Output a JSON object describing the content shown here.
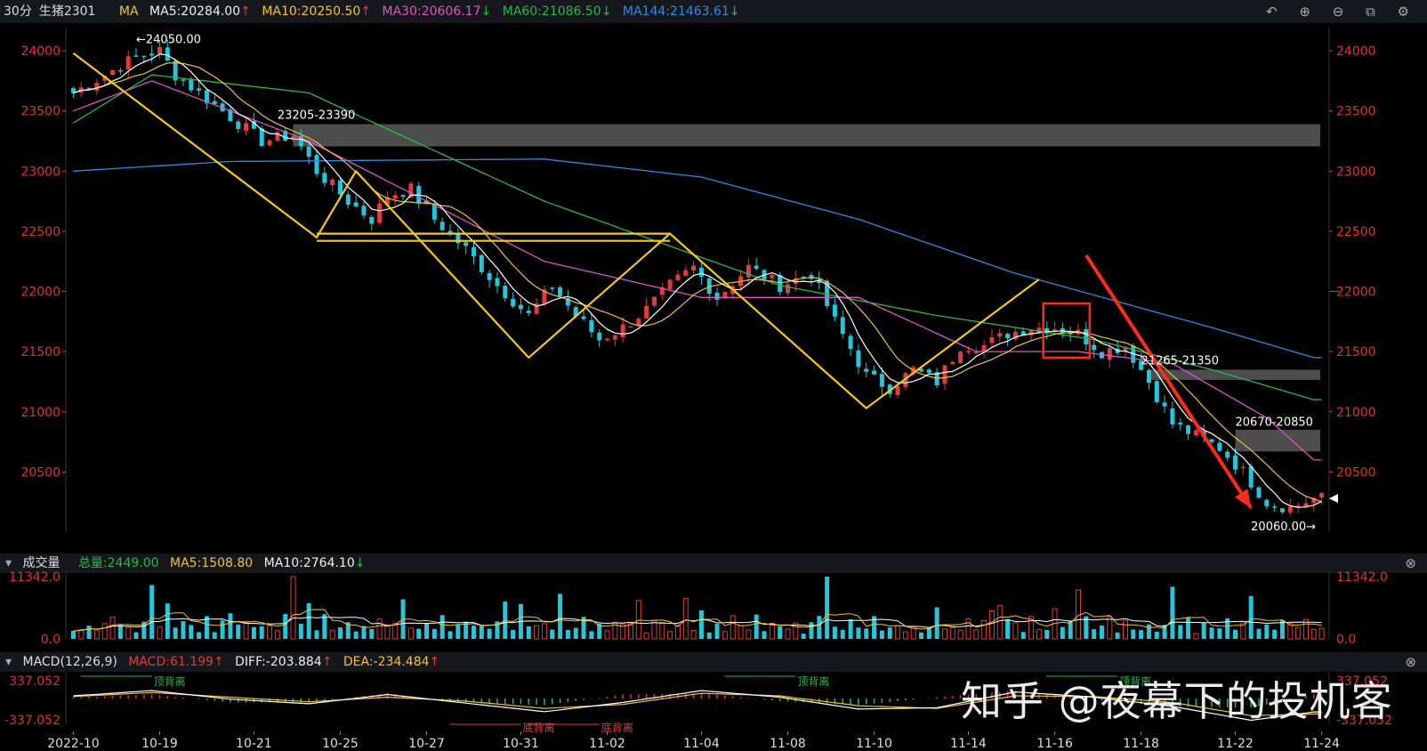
{
  "topbar": {
    "period": "30分",
    "symbol": "生猪2301",
    "ma_label": "MA",
    "ma5": "MA5:20284.00",
    "ma10": "MA10:20250.50",
    "ma30": "MA30:20606.17",
    "ma60": "MA60:21086.50",
    "ma144": "MA144:21463.61",
    "ma5_arrow": "↑",
    "ma10_arrow": "↑",
    "ma30_arrow": "↓",
    "ma60_arrow": "↓",
    "ma144_arrow": "↓",
    "tools": [
      "undo-icon",
      "zoom-in-icon",
      "zoom-out-icon",
      "crop-icon",
      "settings-icon"
    ]
  },
  "colors": {
    "up": "#e13b3b",
    "down": "#26c6da",
    "ma5": "#ffffff",
    "ma10": "#f1c232",
    "ma30": "#e052c8",
    "ma60": "#2bb74a",
    "ma144": "#2f8ae6",
    "pattern": "#f4c81c",
    "arrow": "#ff2a1a",
    "zone": "#555555"
  },
  "volume_bar": {
    "title": "成交量",
    "total": "总量:2449.00",
    "ma5": "MA5:1508.80",
    "ma10": "MA10:2764.10",
    "ma10_arrow": "↓"
  },
  "macd_bar": {
    "title": "MACD(12,26,9)",
    "macd": "MACD:61.199",
    "diff": "DIFF:-203.884",
    "dea": "DEA:-234.484",
    "macd_arrow": "↑",
    "diff_arrow": "↑",
    "dea_arrow": "↑"
  },
  "watermark": "知乎 @夜幕下的投机客",
  "chart_data": [
    {
      "type": "candlestick",
      "title": "生猪2301 30分",
      "y_ticks": [
        24000,
        23500,
        23000,
        22500,
        22000,
        21500,
        21000,
        20500
      ],
      "ylim": [
        20000,
        24200
      ],
      "x_ticks": [
        "2022-10",
        "10-19",
        "10-21",
        "10-25",
        "10-27",
        "10-31",
        "11-02",
        "11-04",
        "11-08",
        "11-10",
        "11-14",
        "11-16",
        "11-18",
        "11-22",
        "11-24"
      ],
      "close_path": [
        [
          0,
          23650
        ],
        [
          4,
          23800
        ],
        [
          8,
          23950
        ],
        [
          11,
          24000
        ],
        [
          13,
          23800
        ],
        [
          16,
          23650
        ],
        [
          20,
          23450
        ],
        [
          24,
          23250
        ],
        [
          28,
          23300
        ],
        [
          31,
          23000
        ],
        [
          35,
          22750
        ],
        [
          38,
          22600
        ],
        [
          40,
          22800
        ],
        [
          43,
          22850
        ],
        [
          46,
          22600
        ],
        [
          50,
          22350
        ],
        [
          54,
          22050
        ],
        [
          58,
          21800
        ],
        [
          61,
          22050
        ],
        [
          64,
          21800
        ],
        [
          67,
          21600
        ],
        [
          70,
          21700
        ],
        [
          73,
          21850
        ],
        [
          76,
          22050
        ],
        [
          79,
          22200
        ],
        [
          82,
          21950
        ],
        [
          86,
          22200
        ],
        [
          90,
          22050
        ],
        [
          94,
          22150
        ],
        [
          97,
          21750
        ],
        [
          101,
          21300
        ],
        [
          104,
          21200
        ],
        [
          107,
          21350
        ],
        [
          110,
          21250
        ],
        [
          113,
          21550
        ],
        [
          116,
          21550
        ],
        [
          119,
          21650
        ],
        [
          122,
          21700
        ],
        [
          125,
          21700
        ],
        [
          128,
          21650
        ],
        [
          131,
          21500
        ],
        [
          134,
          21550
        ],
        [
          137,
          21250
        ],
        [
          140,
          20900
        ],
        [
          143,
          20800
        ],
        [
          146,
          20700
        ],
        [
          149,
          20500
        ],
        [
          152,
          20250
        ],
        [
          155,
          20200
        ],
        [
          158,
          20280
        ]
      ],
      "ma144_path": [
        [
          0,
          23000
        ],
        [
          20,
          23080
        ],
        [
          60,
          23100
        ],
        [
          80,
          22950
        ],
        [
          100,
          22600
        ],
        [
          120,
          22150
        ],
        [
          145,
          21700
        ],
        [
          158,
          21450
        ]
      ],
      "ma60_path": [
        [
          0,
          23400
        ],
        [
          10,
          23800
        ],
        [
          30,
          23650
        ],
        [
          60,
          22750
        ],
        [
          90,
          22050
        ],
        [
          110,
          21800
        ],
        [
          130,
          21600
        ],
        [
          145,
          21350
        ],
        [
          158,
          21100
        ]
      ],
      "ma30_path": [
        [
          0,
          23500
        ],
        [
          10,
          23750
        ],
        [
          30,
          23250
        ],
        [
          45,
          22750
        ],
        [
          60,
          22250
        ],
        [
          80,
          21950
        ],
        [
          100,
          21950
        ],
        [
          115,
          21500
        ],
        [
          128,
          21500
        ],
        [
          140,
          21400
        ],
        [
          152,
          20950
        ],
        [
          158,
          20600
        ]
      ],
      "annotations": [
        {
          "text": "←24050.00",
          "x": 8,
          "y": 24050
        },
        {
          "text": "23205-23390",
          "x": 26,
          "y": 23420
        },
        {
          "text": "21265-21350",
          "x": 136,
          "y": 21380
        },
        {
          "text": "20670-20850",
          "x": 148,
          "y": 20870
        },
        {
          "text": "20060.00→",
          "x": 150,
          "y": 20000
        }
      ],
      "zones": [
        {
          "label": "23205-23390",
          "low": 23205,
          "high": 23390,
          "from": 28,
          "to": 158
        },
        {
          "label": "21265-21350",
          "low": 21265,
          "high": 21350,
          "from": 137,
          "to": 158
        },
        {
          "label": "20670-20850",
          "low": 20670,
          "high": 20850,
          "from": 148,
          "to": 158
        }
      ],
      "pattern_lines": [
        [
          [
            0,
            23980
          ],
          [
            31,
            22450
          ],
          [
            36,
            23000
          ],
          [
            58,
            21450
          ],
          [
            76,
            22480
          ],
          [
            101,
            21030
          ],
          [
            123,
            22100
          ]
        ],
        [
          [
            31,
            22480
          ],
          [
            76,
            22480
          ]
        ],
        [
          [
            31,
            22420
          ],
          [
            76,
            22420
          ]
        ]
      ],
      "highlight_box": {
        "from": 124,
        "to": 129,
        "low": 21450,
        "high": 21900
      },
      "arrow": {
        "from": [
          129,
          22300
        ],
        "to": [
          150,
          20200
        ]
      }
    },
    {
      "type": "bar",
      "title": "成交量",
      "y_ticks": [
        11342.0,
        0.0
      ],
      "ylim": [
        0,
        11342.0
      ],
      "values_pattern": [
        2200,
        1800,
        3500,
        1500,
        2500,
        4200,
        1900,
        2800,
        1600,
        3100,
        2000,
        2400,
        5200,
        1700,
        2600
      ],
      "spikes": [
        [
          10,
          9800
        ],
        [
          28,
          11342
        ],
        [
          30,
          6500
        ],
        [
          42,
          7200
        ],
        [
          55,
          6800
        ],
        [
          62,
          8200
        ],
        [
          78,
          7400
        ],
        [
          96,
          11342
        ],
        [
          118,
          6100
        ],
        [
          128,
          8900
        ],
        [
          140,
          9500
        ],
        [
          150,
          7800
        ]
      ]
    },
    {
      "type": "line",
      "title": "MACD(12,26,9)",
      "y_ticks": [
        337.052,
        -337.052
      ],
      "ylim": [
        -337.052,
        337.052
      ],
      "diff_path": [
        [
          0,
          40
        ],
        [
          10,
          120
        ],
        [
          20,
          -10
        ],
        [
          30,
          -80
        ],
        [
          40,
          60
        ],
        [
          50,
          -70
        ],
        [
          60,
          -200
        ],
        [
          70,
          -60
        ],
        [
          80,
          120
        ],
        [
          90,
          20
        ],
        [
          100,
          -160
        ],
        [
          110,
          -140
        ],
        [
          120,
          100
        ],
        [
          130,
          20
        ],
        [
          140,
          -120
        ],
        [
          150,
          -330
        ],
        [
          158,
          -204
        ]
      ],
      "dea_path": [
        [
          0,
          30
        ],
        [
          10,
          90
        ],
        [
          20,
          20
        ],
        [
          30,
          -50
        ],
        [
          40,
          20
        ],
        [
          50,
          -40
        ],
        [
          60,
          -150
        ],
        [
          70,
          -90
        ],
        [
          80,
          80
        ],
        [
          90,
          40
        ],
        [
          100,
          -110
        ],
        [
          110,
          -150
        ],
        [
          120,
          40
        ],
        [
          130,
          30
        ],
        [
          140,
          -60
        ],
        [
          150,
          -260
        ],
        [
          158,
          -234
        ]
      ],
      "divergence_labels": [
        {
          "text": "顶背离",
          "x": 10,
          "kind": "top"
        },
        {
          "text": "底背离",
          "x": 57,
          "kind": "bottom"
        },
        {
          "text": "底背离",
          "x": 67,
          "kind": "bottom"
        },
        {
          "text": "顶背离",
          "x": 92,
          "kind": "top"
        },
        {
          "text": "顶背离",
          "x": 133,
          "kind": "top"
        }
      ]
    }
  ]
}
